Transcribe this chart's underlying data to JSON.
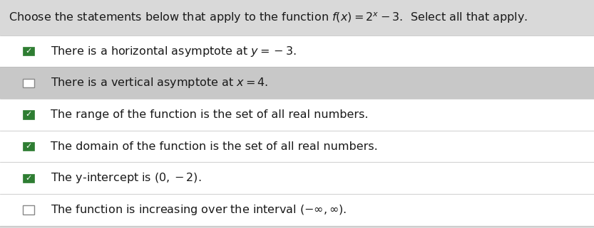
{
  "bg_color": "#d9d9d9",
  "title_bg_color": "#d9d9d9",
  "row_colors": [
    "#ffffff",
    "#c8c8c8",
    "#ffffff",
    "#ffffff",
    "#ffffff",
    "#ffffff"
  ],
  "items": [
    {
      "checked": true,
      "text": "There is a horizontal asymptote at $y = -3$."
    },
    {
      "checked": false,
      "text": "There is a vertical asymptote at $x = 4$."
    },
    {
      "checked": true,
      "text": "The range of the function is the set of all real numbers."
    },
    {
      "checked": true,
      "text": "The domain of the function is the set of all real numbers."
    },
    {
      "checked": true,
      "text": "The y-intercept is $(0, -2)$."
    },
    {
      "checked": false,
      "text": "The function is increasing over the interval $(-\\infty, \\infty)$."
    }
  ],
  "checkbox_checked_color": "#2e7d32",
  "checkbox_unchecked_facecolor": "#ffffff",
  "checkbox_unchecked_edgecolor": "#888888",
  "text_color": "#1a1a1a",
  "font_size": 11.5,
  "title_font_size": 11.5,
  "title_plain": "Choose the statements below that apply to the function $f(x) = 2^x - 3$.  ",
  "title_bold": "Select all that apply."
}
